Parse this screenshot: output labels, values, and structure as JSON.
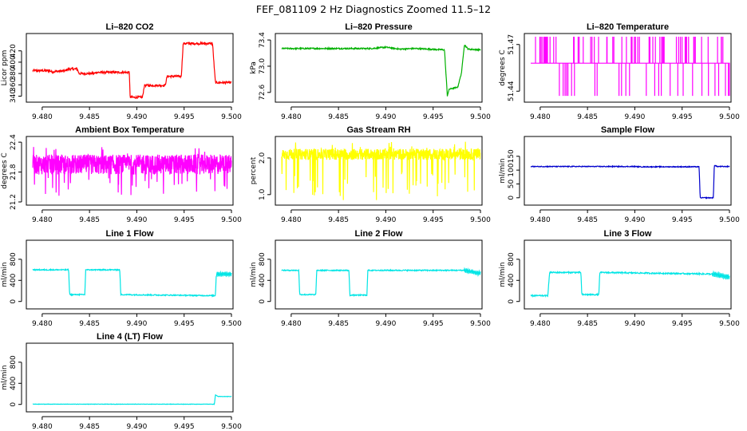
{
  "figure_title": "FEF_081109  2 Hz Diagnostics Zoomed 11.5–12",
  "chart_data": [
    {
      "id": "co2",
      "type": "line",
      "title": "Li–820 CO2",
      "ylabel": "Licor ppm",
      "color": "#ff0000",
      "xlim": [
        9.479,
        9.5
      ],
      "xticks": [
        "9.480",
        "9.485",
        "9.490",
        "9.495",
        "9.500"
      ],
      "ylim": [
        335,
        445
      ],
      "yticks": [
        340,
        360,
        380,
        400,
        420
      ],
      "ytick_labels": [
        "340",
        "360",
        "380",
        "400",
        "420"
      ],
      "series": {
        "x": [
          9.479,
          9.4808,
          9.481,
          9.4825,
          9.4827,
          9.4837,
          9.4839,
          9.4855,
          9.4857,
          9.4892,
          9.4893,
          9.4906,
          9.4908,
          9.493,
          9.4932,
          9.4947,
          9.4949,
          9.498,
          9.4983,
          9.5
        ],
        "y": [
          385,
          385,
          383,
          385,
          388,
          388,
          380,
          380,
          382,
          382,
          338,
          338,
          359,
          359,
          375,
          375,
          433,
          433,
          364,
          364
        ],
        "noise": 2
      }
    },
    {
      "id": "pressure",
      "type": "line",
      "title": "Li–820 Pressure",
      "ylabel": "kPa",
      "color": "#00b000",
      "xlim": [
        9.479,
        9.5
      ],
      "xticks": [
        "9.480",
        "9.485",
        "9.490",
        "9.495",
        "9.500"
      ],
      "ylim": [
        72.5,
        73.45
      ],
      "yticks": [
        72.6,
        73.0,
        73.4
      ],
      "ytick_labels": [
        "72.6",
        "73.0",
        "73.4"
      ],
      "series": {
        "x": [
          9.479,
          9.4885,
          9.49,
          9.4915,
          9.493,
          9.4962,
          9.4965,
          9.4967,
          9.4973,
          9.4976,
          9.498,
          9.4983,
          9.4987,
          9.5
        ],
        "y": [
          73.27,
          73.27,
          73.29,
          73.26,
          73.27,
          73.25,
          72.55,
          72.65,
          72.67,
          72.68,
          72.9,
          73.33,
          73.26,
          73.25
        ],
        "noise": 0.01
      }
    },
    {
      "id": "licor_temp",
      "type": "step-spikes",
      "title": "Li–820 Temperature",
      "ylabel": "degrees C",
      "color": "#ff00ff",
      "xlim": [
        9.479,
        9.5
      ],
      "xticks": [
        "9.480",
        "9.485",
        "9.490",
        "9.495",
        "9.500"
      ],
      "ylim": [
        51.435,
        51.475
      ],
      "yticks": [
        51.44,
        51.47
      ],
      "ytick_labels": [
        "51.44",
        "51.47"
      ],
      "series": {
        "base": 51.458,
        "high": 51.475,
        "low": 51.437,
        "spike_count": 70
      }
    },
    {
      "id": "box_temp",
      "type": "noise-band",
      "title": "Ambient Box Temperature",
      "ylabel": "degrees C",
      "color": "#ff00ff",
      "xlim": [
        9.479,
        9.5
      ],
      "xticks": [
        "9.480",
        "9.485",
        "9.490",
        "9.495",
        "9.500"
      ],
      "ylim": [
        21.2,
        22.45
      ],
      "yticks": [
        21.2,
        21.8,
        22.4
      ],
      "ytick_labels": [
        "21.2",
        "21.8",
        "22.4"
      ],
      "series": {
        "center": 21.95,
        "amplitude": 0.2,
        "spike_low": 21.3,
        "spike_high": 22.35
      }
    },
    {
      "id": "rh",
      "type": "noise-band",
      "title": "Gas Stream RH",
      "ylabel": "percent",
      "color": "#ffff00",
      "xlim": [
        9.479,
        9.5
      ],
      "xticks": [
        "9.480",
        "9.485",
        "9.490",
        "9.495",
        "9.500"
      ],
      "ylim": [
        0.8,
        2.5
      ],
      "yticks": [
        1.0,
        2.0
      ],
      "ytick_labels": [
        "1.0",
        "2.0"
      ],
      "series": {
        "center": 2.1,
        "amplitude": 0.15,
        "spike_low": 0.85,
        "spike_high": 2.45
      }
    },
    {
      "id": "sample_flow",
      "type": "line",
      "title": "Sample Flow",
      "ylabel": "ml/min",
      "color": "#0000cc",
      "xlim": [
        9.479,
        9.5
      ],
      "xticks": [
        "9.480",
        "9.485",
        "9.490",
        "9.495",
        "9.500"
      ],
      "ylim": [
        -15,
        210
      ],
      "yticks": [
        0,
        50,
        100,
        150
      ],
      "ytick_labels": [
        "0",
        "50",
        "100",
        "150"
      ],
      "series": {
        "x": [
          9.479,
          9.49,
          9.4905,
          9.4968,
          9.4969,
          9.4983,
          9.4984,
          9.4987,
          9.5
        ],
        "y": [
          113,
          113,
          112,
          112,
          0,
          0,
          118,
          113,
          113
        ],
        "noise": 1.5
      }
    },
    {
      "id": "line1",
      "type": "line",
      "title": "Line 1 Flow",
      "ylabel": "ml/min",
      "color": "#00e5e5",
      "xlim": [
        9.479,
        9.5
      ],
      "xticks": [
        "9.480",
        "9.485",
        "9.490",
        "9.495",
        "9.500"
      ],
      "ylim": [
        -80,
        1100
      ],
      "yticks": [
        0,
        400,
        800
      ],
      "ytick_labels": [
        "0",
        "400",
        "800"
      ],
      "series": {
        "x": [
          9.479,
          9.4828,
          9.4829,
          9.4845,
          9.4846,
          9.4882,
          9.4883,
          9.4983,
          9.4984,
          9.5
        ],
        "y": [
          600,
          600,
          130,
          130,
          600,
          600,
          130,
          110,
          520,
          520
        ],
        "noise": 10,
        "wiggle_from": 9.4984,
        "wiggle_amp": 40
      }
    },
    {
      "id": "line2",
      "type": "line",
      "title": "Line 2 Flow",
      "ylabel": "ml/min",
      "color": "#00e5e5",
      "xlim": [
        9.479,
        9.5
      ],
      "xticks": [
        "9.480",
        "9.485",
        "9.490",
        "9.495",
        "9.500"
      ],
      "ylim": [
        -80,
        1100
      ],
      "yticks": [
        0,
        400,
        800
      ],
      "ytick_labels": [
        "0",
        "400",
        "800"
      ],
      "series": {
        "x": [
          9.479,
          9.4808,
          9.4809,
          9.4826,
          9.4827,
          9.4861,
          9.4862,
          9.488,
          9.4881,
          9.4983,
          9.5
        ],
        "y": [
          590,
          590,
          130,
          130,
          590,
          590,
          120,
          120,
          590,
          590,
          530
        ],
        "noise": 10,
        "wiggle_from": 9.4983,
        "wiggle_amp": 40
      }
    },
    {
      "id": "line3",
      "type": "line",
      "title": "Line 3 Flow",
      "ylabel": "ml/min",
      "color": "#00e5e5",
      "xlim": [
        9.479,
        9.5
      ],
      "xticks": [
        "9.480",
        "9.485",
        "9.490",
        "9.495",
        "9.500"
      ],
      "ylim": [
        -80,
        1100
      ],
      "yticks": [
        0,
        400,
        800
      ],
      "ytick_labels": [
        "0",
        "400",
        "800"
      ],
      "series": {
        "x": [
          9.479,
          9.4808,
          9.481,
          9.4843,
          9.4844,
          9.4862,
          9.4863,
          9.4982,
          9.5
        ],
        "y": [
          110,
          110,
          550,
          550,
          130,
          130,
          550,
          520,
          460
        ],
        "noise": 12,
        "wiggle_from": 9.4982,
        "wiggle_amp": 45
      }
    },
    {
      "id": "line4",
      "type": "line",
      "title": "Line 4 (LT) Flow",
      "ylabel": "ml/min",
      "color": "#00e5e5",
      "xlim": [
        9.479,
        9.5
      ],
      "xticks": [
        "9.480",
        "9.485",
        "9.490",
        "9.495",
        "9.500"
      ],
      "ylim": [
        -80,
        1100
      ],
      "yticks": [
        0,
        400,
        800
      ],
      "ytick_labels": [
        "0",
        "400",
        "800"
      ],
      "series": {
        "x": [
          9.479,
          9.4982,
          9.4983,
          9.4986,
          9.5
        ],
        "y": [
          5,
          5,
          180,
          150,
          150
        ],
        "noise": 3
      }
    }
  ]
}
